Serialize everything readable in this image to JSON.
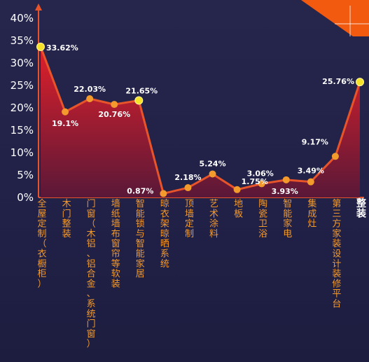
{
  "chart_data": {
    "type": "area",
    "title": "",
    "xlabel": "",
    "ylabel": "",
    "ylim": [
      0,
      42
    ],
    "yticks": [
      "0%",
      "5%",
      "10%",
      "15%",
      "20%",
      "25%",
      "30%",
      "35%",
      "40%"
    ],
    "categories": [
      "全屋定制（衣橱柜）",
      "木门整装",
      "门窗（木铝、铝合金、系统门窗）",
      "墙纸墙布窗帘等软装",
      "智能锁与智能家居",
      "晾衣架晾晒系统",
      "顶墙定制",
      "艺术涂料",
      "地板",
      "陶瓷卫浴",
      "智能家电",
      "集成灶",
      "第三方家装设计装修平台",
      "整装"
    ],
    "values": [
      33.62,
      19.1,
      22.03,
      20.76,
      21.65,
      0.87,
      2.18,
      5.24,
      1.75,
      3.06,
      3.93,
      3.49,
      9.17,
      25.76
    ],
    "labels": [
      "33.62%",
      "19.1%",
      "22.03%",
      "20.76%",
      "21.65%",
      "0.87%",
      "2.18%",
      "5.24%",
      "1.75%",
      "3.06%",
      "3.93%",
      "3.49%",
      "9.17%",
      "25.76%"
    ],
    "colors": {
      "line": "#e8542a",
      "axis": "#e8542a",
      "fill_top": "#e0202a",
      "fill_bottom": "#5a1838",
      "marker": "#f39a2c",
      "highlight_marker": "#f7e22a",
      "category_text": "#f39a2c",
      "last_category_text": "#ffffff",
      "corner_accent": "#f25a10"
    },
    "highlight_points": [
      0,
      4,
      13
    ]
  }
}
